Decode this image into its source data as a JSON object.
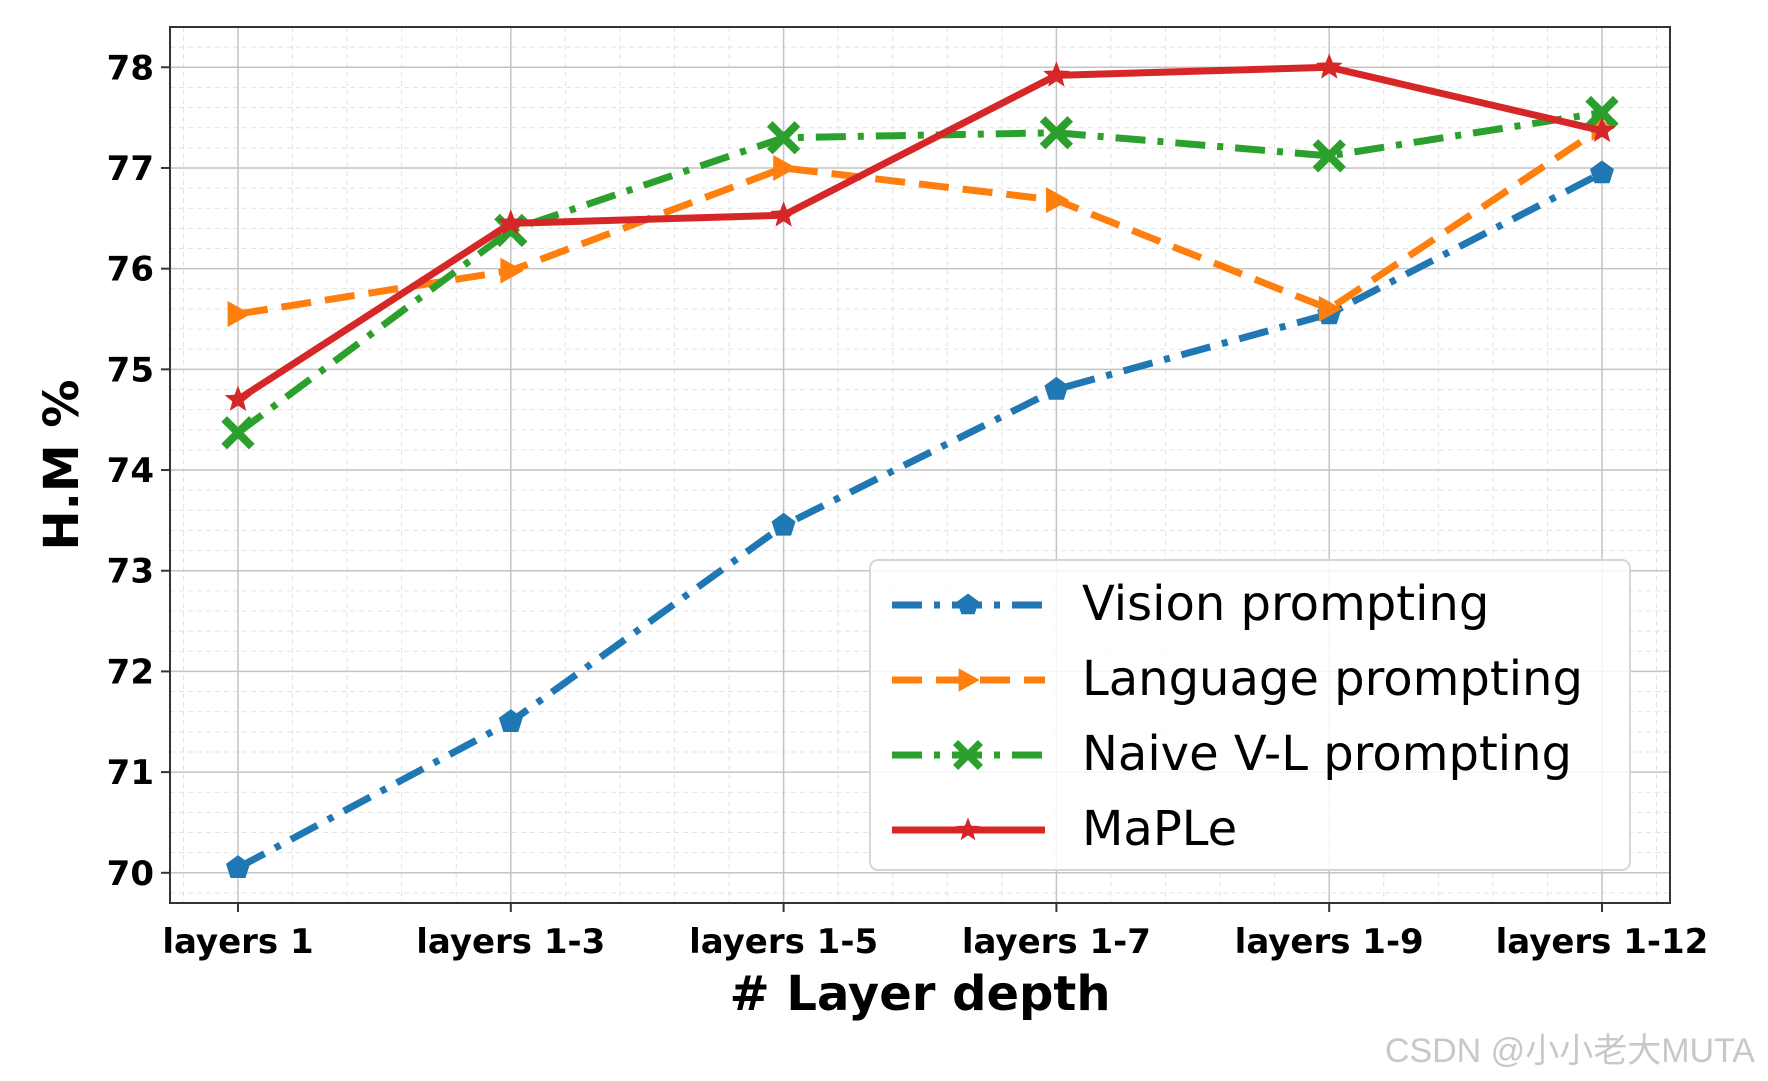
{
  "watermark": "CSDN @小小老大MUTA",
  "chart_data": {
    "type": "line",
    "title": "",
    "xlabel": "# Layer depth",
    "ylabel": "H.M %",
    "categories": [
      "layers 1",
      "layers 1-3",
      "layers 1-5",
      "layers 1-7",
      "layers 1-9",
      "layers 1-12"
    ],
    "ylim": [
      69.7,
      78.4
    ],
    "yticks": [
      70,
      71,
      72,
      73,
      74,
      75,
      76,
      77,
      78
    ],
    "grid": true,
    "legend_position": "lower-right",
    "series": [
      {
        "name": "Vision prompting",
        "values": [
          70.05,
          71.5,
          73.45,
          74.8,
          75.55,
          76.95
        ],
        "color": "#1f77b4",
        "linestyle": "dash-dot",
        "marker": "pentagon"
      },
      {
        "name": "Language prompting",
        "values": [
          75.55,
          75.98,
          77.0,
          76.68,
          75.6,
          77.4
        ],
        "color": "#ff7f0e",
        "linestyle": "dashed",
        "marker": "triangle-right"
      },
      {
        "name": "Naive V-L prompting",
        "values": [
          74.37,
          76.38,
          77.3,
          77.35,
          77.12,
          77.55
        ],
        "color": "#2ca02c",
        "linestyle": "dash-dot",
        "marker": "x-filled"
      },
      {
        "name": "MaPLe",
        "values": [
          74.7,
          76.45,
          76.53,
          77.92,
          78.0,
          77.37
        ],
        "color": "#d62728",
        "linestyle": "solid",
        "marker": "star"
      }
    ]
  }
}
